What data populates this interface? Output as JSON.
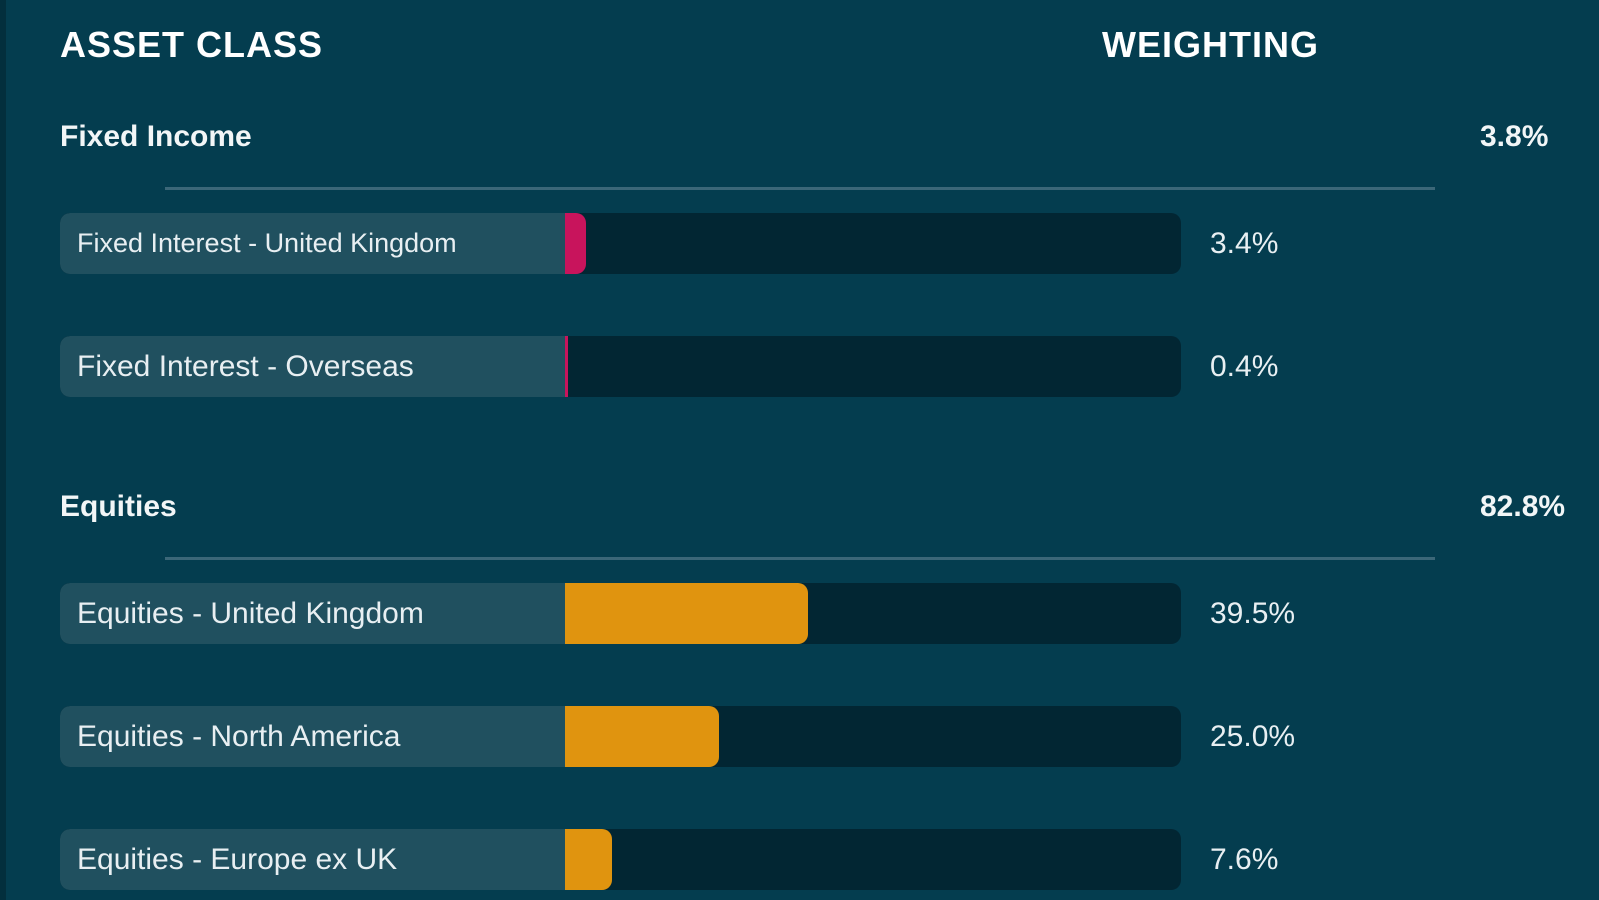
{
  "header": {
    "asset_class": "ASSET CLASS",
    "weighting": "WEIGHTING"
  },
  "colors": {
    "fixed_income": "#c8145c",
    "equities": "#e0940f"
  },
  "groups": [
    {
      "title": "Fixed Income",
      "total": "3.8%",
      "items": [
        {
          "label": "Fixed Interest - United Kingdom",
          "value": "3.4%",
          "weight": 3.4
        },
        {
          "label": "Fixed Interest - Overseas",
          "value": "0.4%",
          "weight": 0.4
        }
      ]
    },
    {
      "title": "Equities",
      "total": "82.8%",
      "items": [
        {
          "label": "Equities - United Kingdom",
          "value": "39.5%",
          "weight": 39.5
        },
        {
          "label": "Equities - North America",
          "value": "25.0%",
          "weight": 25.0
        },
        {
          "label": "Equities - Europe ex UK",
          "value": "7.6%",
          "weight": 7.6
        }
      ]
    }
  ],
  "chart_data": {
    "type": "bar",
    "categories": [
      "Fixed Interest - United Kingdom",
      "Fixed Interest - Overseas",
      "Equities - United Kingdom",
      "Equities - North America",
      "Equities - Europe ex UK"
    ],
    "values": [
      3.4,
      0.4,
      39.5,
      25.0,
      7.6
    ],
    "group_totals": [
      {
        "name": "Fixed Income",
        "value": 3.8
      },
      {
        "name": "Equities",
        "value": 82.8
      }
    ],
    "xlim": [
      0,
      100
    ],
    "orientation": "horizontal",
    "grid": false,
    "legend": "none"
  }
}
